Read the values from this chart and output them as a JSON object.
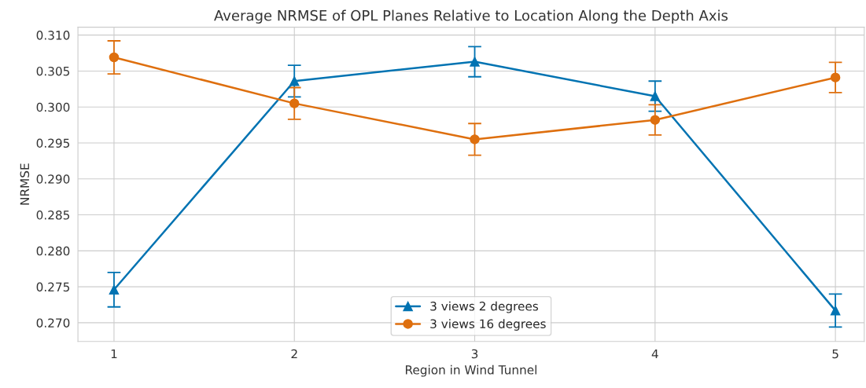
{
  "chart_data": {
    "type": "line",
    "title": "Average NRMSE of OPL Planes Relative to Location Along the Depth Axis",
    "xlabel": "Region in Wind Tunnel",
    "ylabel": "NRMSE",
    "x": [
      1,
      2,
      3,
      4,
      5
    ],
    "series": [
      {
        "name": "3 views 2 degrees",
        "color": "#0173b2",
        "marker": "triangle",
        "values": [
          0.2746,
          0.3036,
          0.3063,
          0.3015,
          0.2717
        ],
        "errors": [
          0.0024,
          0.0022,
          0.0021,
          0.0021,
          0.0023
        ]
      },
      {
        "name": "3 views 16 degrees",
        "color": "#de6f0e",
        "marker": "circle",
        "values": [
          0.3069,
          0.3005,
          0.2955,
          0.2982,
          0.3041
        ],
        "errors": [
          0.0023,
          0.0022,
          0.0022,
          0.0021,
          0.0021
        ]
      }
    ],
    "xlim": [
      0.8,
      5.16
    ],
    "xticks": [
      1,
      2,
      3,
      4,
      5
    ],
    "ylim": [
      0.2674,
      0.3111
    ],
    "yticks": [
      {
        "value": 0.27,
        "label": "0.270"
      },
      {
        "value": 0.275,
        "label": "0.275"
      },
      {
        "value": 0.28,
        "label": "0.280"
      },
      {
        "value": 0.285,
        "label": "0.285"
      },
      {
        "value": 0.29,
        "label": "0.290"
      },
      {
        "value": 0.295,
        "label": "0.295"
      },
      {
        "value": 0.3,
        "label": "0.300"
      },
      {
        "value": 0.305,
        "label": "0.305"
      },
      {
        "value": 0.31,
        "label": "0.310"
      }
    ],
    "grid": true,
    "legend": "bottom",
    "line_style": "solid"
  }
}
